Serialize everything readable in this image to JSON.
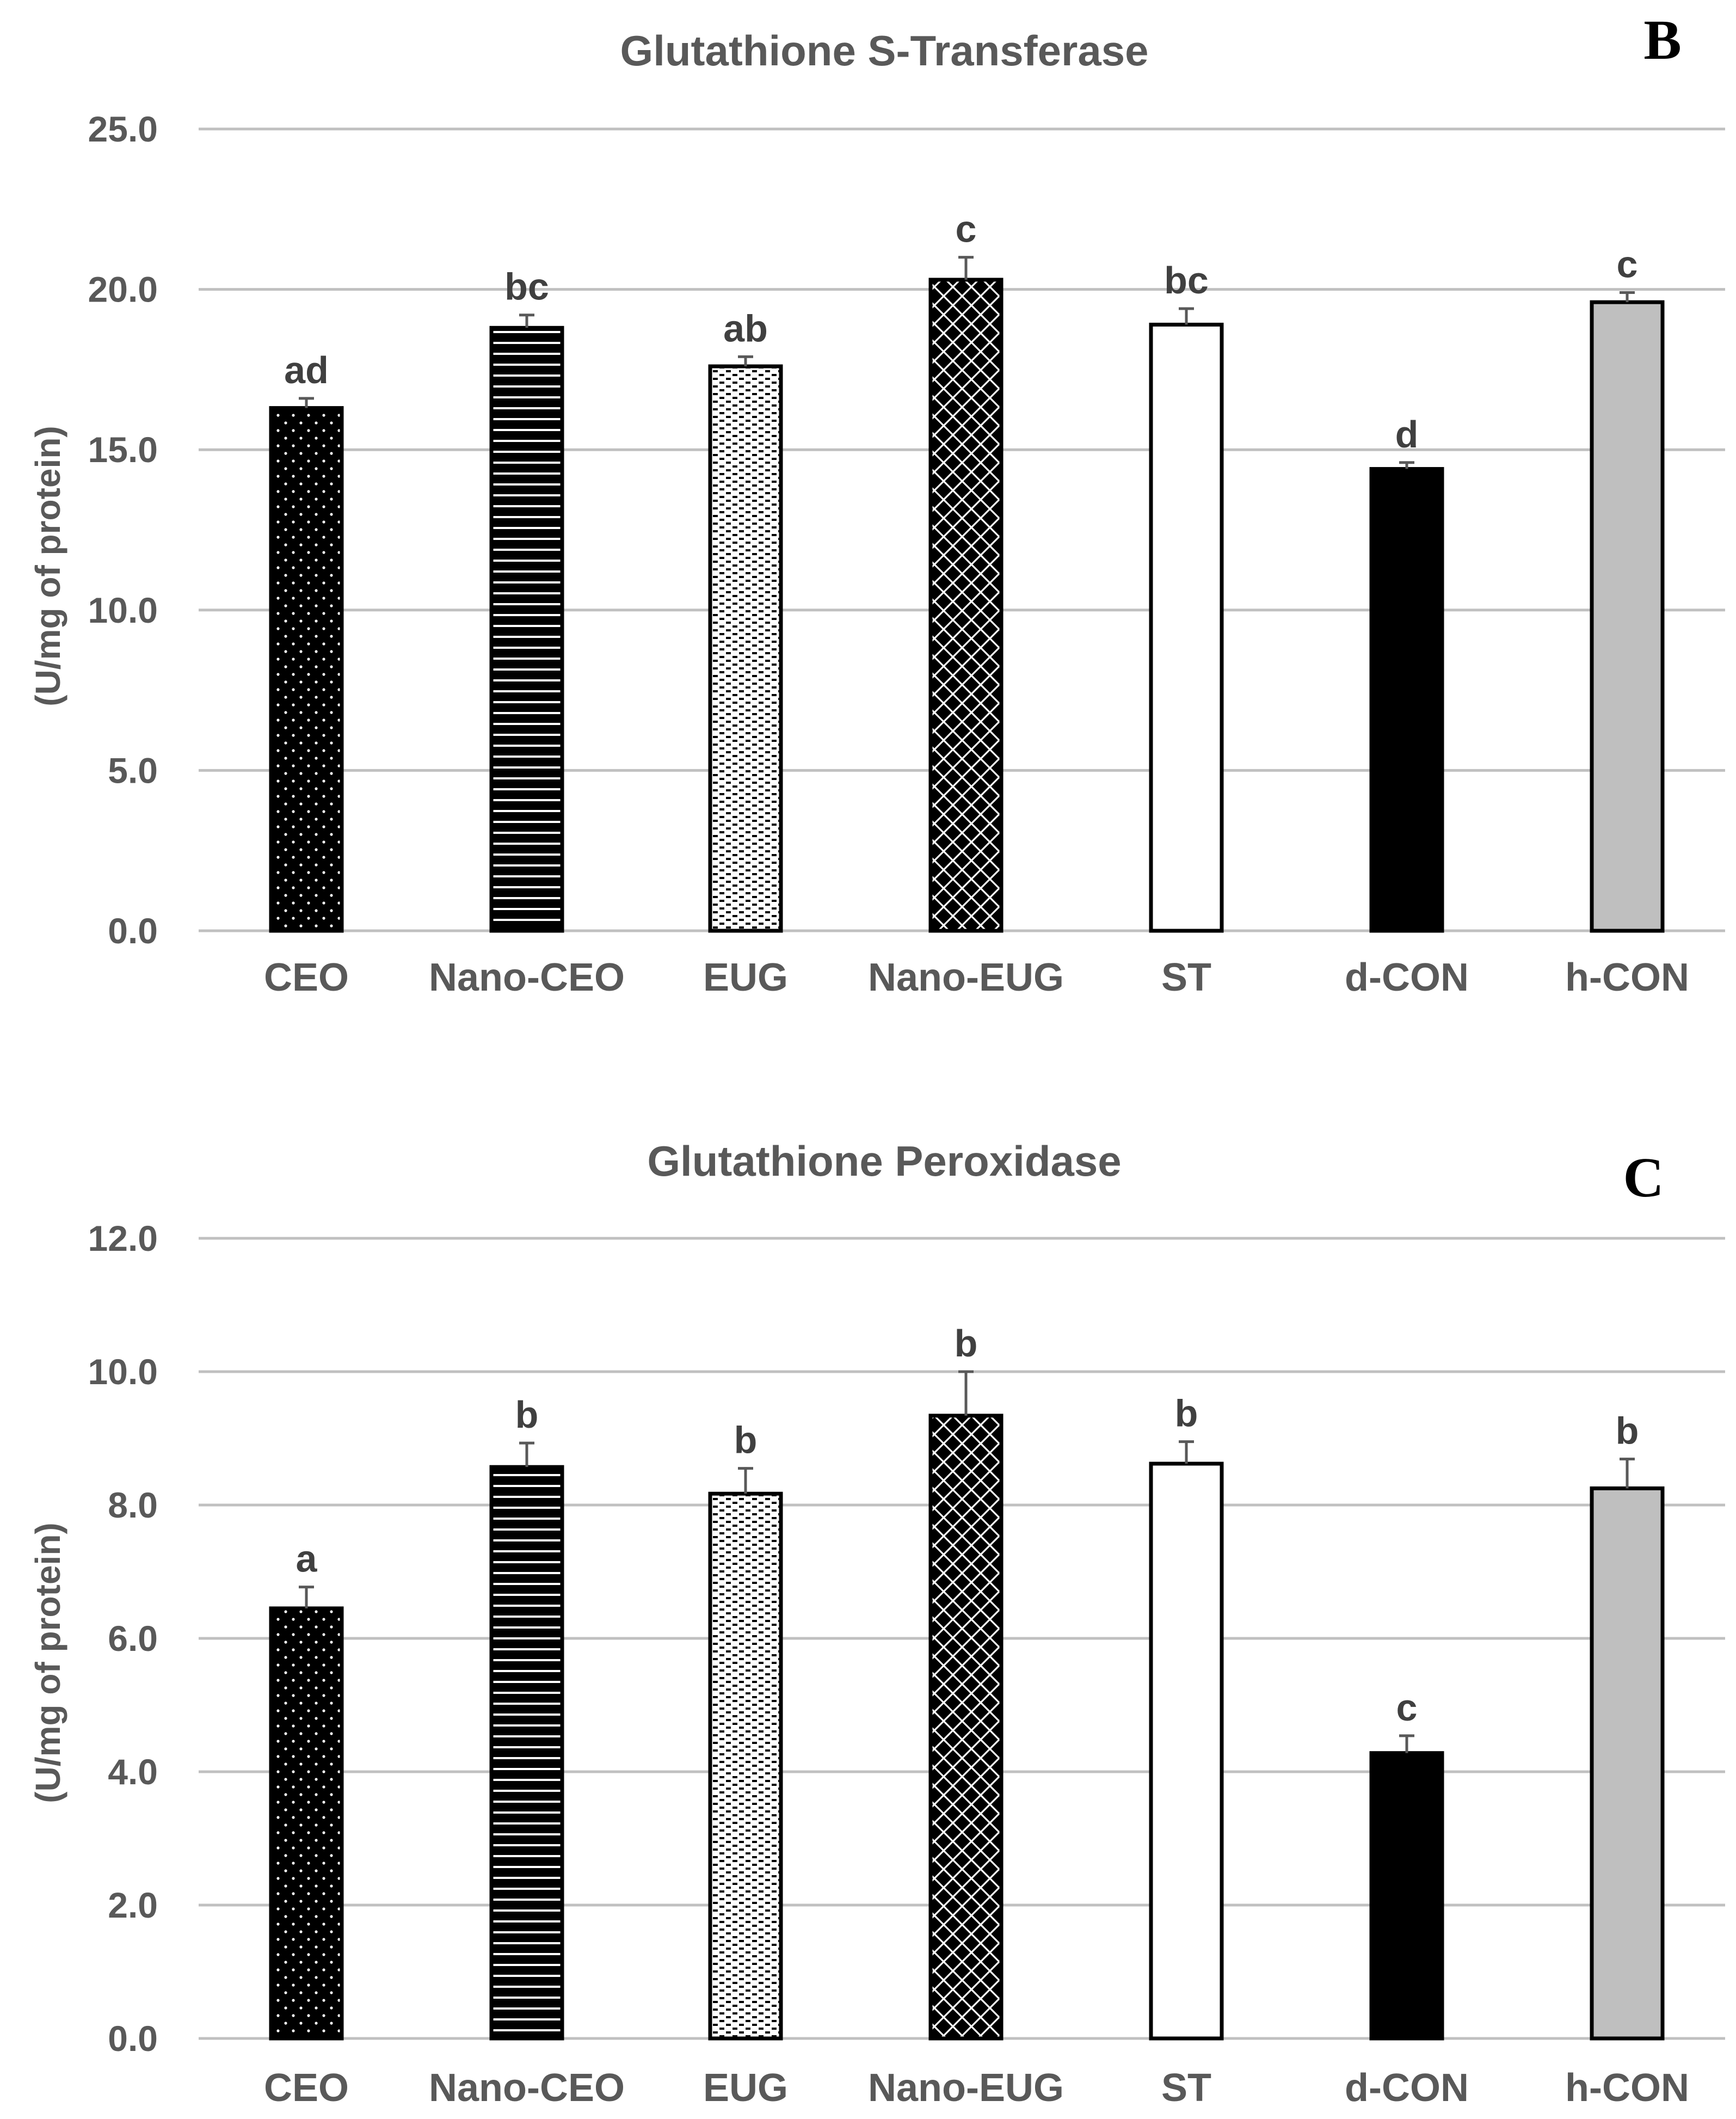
{
  "chart_data": [
    {
      "type": "bar",
      "title": "Glutathione S-Transferase",
      "panel_label": "B",
      "ylabel": "(U/mg of protein)",
      "xlabel": "",
      "ylim": [
        0,
        25
      ],
      "yticks": [
        "0.0",
        "5.0",
        "10.0",
        "15.0",
        "20.0",
        "25.0"
      ],
      "grid": true,
      "categories": [
        "CEO",
        "Nano-CEO",
        "EUG",
        "Nano-EUG",
        "ST",
        "d-CON",
        "h-CON"
      ],
      "values": [
        16.3,
        18.8,
        17.6,
        20.3,
        18.9,
        14.4,
        19.6
      ],
      "errors": [
        0.3,
        0.4,
        0.3,
        0.7,
        0.5,
        0.2,
        0.3
      ],
      "significance_labels": [
        "ad",
        "bc",
        "ab",
        "c",
        "bc",
        "d",
        "c"
      ],
      "bar_patterns": [
        "dots",
        "horizontal-lines",
        "dashes",
        "crosshatch",
        "white",
        "black",
        "gray"
      ]
    },
    {
      "type": "bar",
      "title": "Glutathione Peroxidase",
      "panel_label": "C",
      "ylabel": "(U/mg of protein)",
      "xlabel": "",
      "ylim": [
        0,
        12
      ],
      "yticks": [
        "0.0",
        "2.0",
        "4.0",
        "6.0",
        "8.0",
        "10.0",
        "12.0"
      ],
      "grid": true,
      "categories": [
        "CEO",
        "Nano-CEO",
        "EUG",
        "Nano-EUG",
        "ST",
        "d-CON",
        "h-CON"
      ],
      "values": [
        6.45,
        8.57,
        8.17,
        9.34,
        8.62,
        4.28,
        8.25
      ],
      "errors": [
        0.32,
        0.36,
        0.38,
        0.66,
        0.33,
        0.26,
        0.44
      ],
      "significance_labels": [
        "a",
        "b",
        "b",
        "b",
        "b",
        "c",
        "b"
      ],
      "bar_patterns": [
        "dots",
        "horizontal-lines",
        "dashes",
        "crosshatch",
        "white",
        "black",
        "gray"
      ]
    }
  ],
  "colors": {
    "grid": "#c0c0c0",
    "axis_text": "#595959",
    "bar_outline": "#000000",
    "error_bar": "#595959",
    "bar_gray": "#bfbfbf"
  }
}
